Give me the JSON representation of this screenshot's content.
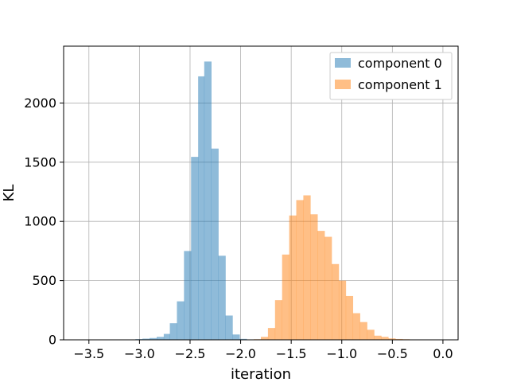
{
  "chart_data": {
    "type": "bar",
    "subtype": "histogram",
    "title": "",
    "xlabel": "iteration",
    "ylabel": "KL",
    "xlim": [
      -3.75,
      0.15
    ],
    "ylim": [
      0,
      2480
    ],
    "xticks": [
      -3.5,
      -3.0,
      -2.5,
      -2.0,
      -1.5,
      -1.0,
      -0.5,
      0.0
    ],
    "xtick_labels": [
      "−3.5",
      "−3.0",
      "−2.5",
      "−2.0",
      "−1.5",
      "−1.0",
      "−0.5",
      "0.0"
    ],
    "yticks": [
      0,
      500,
      1000,
      1500,
      2000
    ],
    "ytick_labels": [
      "0",
      "500",
      "1000",
      "1500",
      "2000"
    ],
    "grid": true,
    "legend_position": "top-right",
    "series": [
      {
        "name": "component 0",
        "color": "#1f77b4",
        "alpha": 0.5,
        "bins": [
          [
            -3.11,
            -3.04,
            3
          ],
          [
            -3.04,
            -2.97,
            6
          ],
          [
            -2.97,
            -2.9,
            10
          ],
          [
            -2.9,
            -2.83,
            15
          ],
          [
            -2.83,
            -2.76,
            25
          ],
          [
            -2.76,
            -2.7,
            50
          ],
          [
            -2.7,
            -2.63,
            140
          ],
          [
            -2.63,
            -2.56,
            325
          ],
          [
            -2.56,
            -2.49,
            750
          ],
          [
            -2.49,
            -2.42,
            1545
          ],
          [
            -2.42,
            -2.36,
            2225
          ],
          [
            -2.36,
            -2.29,
            2350
          ],
          [
            -2.29,
            -2.22,
            1615
          ],
          [
            -2.22,
            -2.15,
            710
          ],
          [
            -2.15,
            -2.08,
            205
          ],
          [
            -2.08,
            -2.01,
            45
          ],
          [
            -2.01,
            -1.94,
            8
          ]
        ]
      },
      {
        "name": "component 1",
        "color": "#ff7f0e",
        "alpha": 0.5,
        "bins": [
          [
            -1.87,
            -1.8,
            5
          ],
          [
            -1.8,
            -1.73,
            25
          ],
          [
            -1.73,
            -1.66,
            100
          ],
          [
            -1.66,
            -1.59,
            335
          ],
          [
            -1.59,
            -1.52,
            720
          ],
          [
            -1.52,
            -1.45,
            1050
          ],
          [
            -1.45,
            -1.38,
            1180
          ],
          [
            -1.38,
            -1.31,
            1220
          ],
          [
            -1.31,
            -1.24,
            1060
          ],
          [
            -1.24,
            -1.17,
            920
          ],
          [
            -1.17,
            -1.1,
            870
          ],
          [
            -1.1,
            -1.03,
            640
          ],
          [
            -1.03,
            -0.96,
            500
          ],
          [
            -0.96,
            -0.89,
            370
          ],
          [
            -0.89,
            -0.82,
            225
          ],
          [
            -0.82,
            -0.75,
            150
          ],
          [
            -0.75,
            -0.68,
            85
          ],
          [
            -0.68,
            -0.61,
            35
          ],
          [
            -0.61,
            -0.54,
            25
          ],
          [
            -0.54,
            -0.47,
            12
          ],
          [
            -0.47,
            -0.4,
            7
          ],
          [
            -0.4,
            -0.33,
            5
          ],
          [
            -0.33,
            -0.26,
            3
          ],
          [
            -0.26,
            -0.19,
            2
          ]
        ]
      }
    ]
  }
}
